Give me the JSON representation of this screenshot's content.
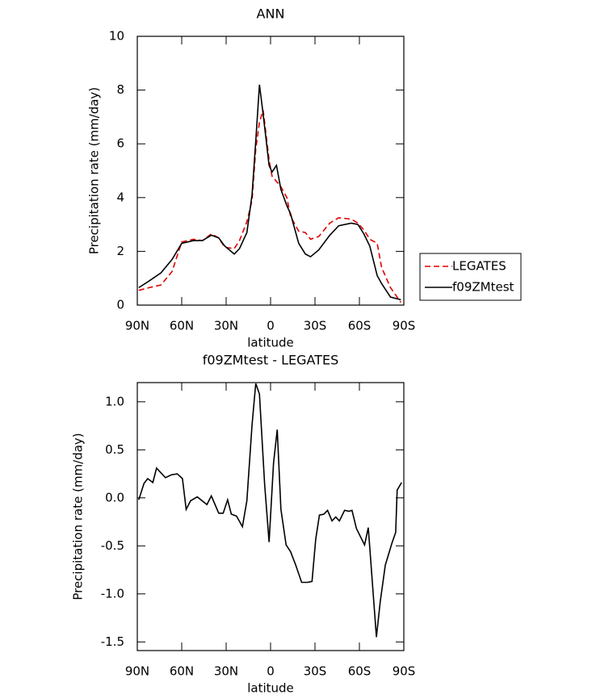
{
  "chart_data": [
    {
      "type": "line",
      "title": "ANN",
      "xlabel": "latitude",
      "ylabel": "Precipitation rate (mm/day)",
      "x": [
        89,
        82,
        74,
        66.5,
        60,
        52,
        46,
        40,
        35,
        31,
        24.5,
        21,
        16,
        12.5,
        10,
        7.5,
        5,
        1,
        -1,
        -4,
        -7,
        -11,
        -13.5,
        -19,
        -23.5,
        -27,
        -32.5,
        -40,
        -46,
        -54.5,
        -59,
        -63,
        -67,
        -72,
        -75,
        -81,
        -88
      ],
      "series": [
        {
          "name": "LEGATES",
          "color": "#e00000",
          "linestyle": "dashed",
          "values": [
            0.55,
            0.65,
            0.75,
            1.25,
            2.35,
            2.45,
            2.4,
            2.65,
            2.5,
            2.15,
            2.1,
            2.4,
            3.1,
            3.9,
            5.8,
            6.8,
            7.25,
            5.4,
            4.8,
            4.6,
            4.4,
            4.0,
            3.3,
            2.75,
            2.7,
            2.45,
            2.55,
            3.05,
            3.25,
            3.2,
            3.05,
            2.8,
            2.45,
            2.3,
            1.4,
            0.65,
            0.1
          ]
        },
        {
          "name": "f09ZMtest",
          "color": "#000000",
          "linestyle": "solid",
          "values": [
            0.65,
            0.9,
            1.2,
            1.7,
            2.3,
            2.4,
            2.4,
            2.6,
            2.5,
            2.2,
            1.9,
            2.1,
            2.7,
            4.1,
            6.1,
            8.2,
            7.1,
            5.2,
            4.95,
            5.2,
            4.3,
            3.7,
            3.4,
            2.3,
            1.9,
            1.8,
            2.05,
            2.6,
            2.95,
            3.05,
            3.0,
            2.65,
            2.2,
            1.1,
            0.8,
            0.3,
            0.2
          ]
        }
      ],
      "xlim": [
        90,
        -90
      ],
      "xticks": [
        {
          "value": 90,
          "label": "90N"
        },
        {
          "value": 60,
          "label": "60N"
        },
        {
          "value": 30,
          "label": "30N"
        },
        0,
        {
          "value": -30,
          "label": "30S"
        },
        {
          "value": -60,
          "label": "60S"
        },
        {
          "value": -90,
          "label": "90S"
        }
      ],
      "ylim": [
        0,
        10
      ],
      "yticks": [
        0,
        2,
        4,
        6,
        8,
        10
      ],
      "legend": "right"
    },
    {
      "type": "line",
      "title": "f09ZMtest - LEGATES",
      "xlabel": "latitude",
      "ylabel": "Precipitation rate (mm/day)",
      "x": [
        89,
        85.5,
        83,
        79.5,
        77,
        71,
        67,
        63,
        59.5,
        57,
        54,
        49.5,
        43,
        40,
        35,
        32,
        29,
        26.5,
        23,
        19,
        16,
        12.5,
        10,
        7.5,
        4,
        1,
        -2,
        -4.5,
        -7,
        -10.5,
        -13.5,
        -17,
        -21,
        -25,
        -28,
        -30.5,
        -33,
        -36,
        -38.5,
        -41.5,
        -44,
        -46.5,
        -50,
        -53,
        -55,
        -58,
        -63.5,
        -66,
        -71.5,
        -74,
        -77.5,
        -82,
        -84.5,
        -85.5,
        -88.5
      ],
      "series": [
        {
          "color": "#000000",
          "linestyle": "solid",
          "values": [
            -0.02,
            0.15,
            0.2,
            0.16,
            0.31,
            0.21,
            0.24,
            0.25,
            0.2,
            -0.12,
            -0.03,
            0.01,
            -0.07,
            0.02,
            -0.16,
            -0.16,
            -0.02,
            -0.17,
            -0.19,
            -0.3,
            -0.03,
            0.76,
            1.19,
            1.08,
            0.14,
            -0.46,
            0.36,
            0.71,
            -0.12,
            -0.49,
            -0.56,
            -0.7,
            -0.88,
            -0.88,
            -0.87,
            -0.43,
            -0.18,
            -0.17,
            -0.13,
            -0.24,
            -0.2,
            -0.24,
            -0.13,
            -0.14,
            -0.13,
            -0.32,
            -0.49,
            -0.31,
            -1.45,
            -1.09,
            -0.7,
            -0.47,
            -0.36,
            0.08,
            0.16
          ]
        }
      ],
      "xlim": [
        90,
        -90
      ],
      "xticks": [
        {
          "value": 90,
          "label": "90N"
        },
        {
          "value": 60,
          "label": "60N"
        },
        {
          "value": 30,
          "label": "30N"
        },
        0,
        {
          "value": -30,
          "label": "30S"
        },
        {
          "value": -60,
          "label": "60S"
        },
        {
          "value": -90,
          "label": "90S"
        }
      ],
      "ylim": [
        -1.59,
        1.2
      ],
      "yticks": [
        {
          "value": 1,
          "label": "1.0"
        },
        0.5,
        {
          "value": 0,
          "label": "0.0"
        },
        -0.5,
        {
          "value": -1,
          "label": "-1.0"
        },
        -1.5
      ]
    }
  ]
}
